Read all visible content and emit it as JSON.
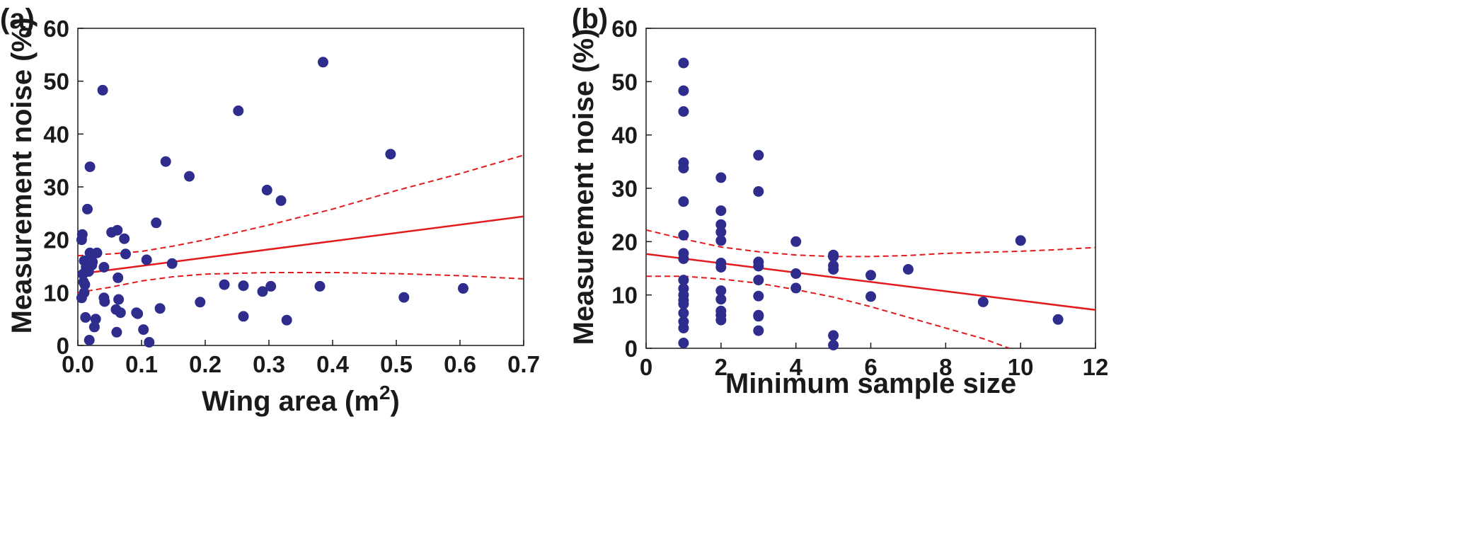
{
  "colors": {
    "points": "#2e2c8c",
    "fit": "#e31a1c",
    "axis": "#1a1a1a"
  },
  "chart_data": [
    {
      "type": "scatter",
      "panel_label": "(a)",
      "xlabel": "Wing area (m",
      "xlabel_sup": "2",
      "xlabel_close": ")",
      "ylabel": "Measurement noise (%)",
      "xlim": [
        0,
        0.7
      ],
      "ylim": [
        0,
        60
      ],
      "xticks": [
        "0.0",
        "0.1",
        "0.2",
        "0.3",
        "0.4",
        "0.5",
        "0.6",
        "0.7"
      ],
      "xtick_values": [
        0,
        0.1,
        0.2,
        0.3,
        0.4,
        0.5,
        0.6,
        0.7
      ],
      "yticks": [
        "0",
        "10",
        "20",
        "30",
        "40",
        "50",
        "60"
      ],
      "ytick_values": [
        0,
        10,
        20,
        30,
        40,
        50,
        60
      ],
      "grid": false,
      "points": [
        [
          0.006,
          9.0
        ],
        [
          0.006,
          20.0
        ],
        [
          0.007,
          21.0
        ],
        [
          0.008,
          13.5
        ],
        [
          0.009,
          12.0
        ],
        [
          0.01,
          16.0
        ],
        [
          0.01,
          10.0
        ],
        [
          0.011,
          11.5
        ],
        [
          0.012,
          5.3
        ],
        [
          0.013,
          14.8
        ],
        [
          0.015,
          25.8
        ],
        [
          0.017,
          14.0
        ],
        [
          0.018,
          1.0
        ],
        [
          0.019,
          33.8
        ],
        [
          0.019,
          17.5
        ],
        [
          0.02,
          15.8
        ],
        [
          0.022,
          15.2
        ],
        [
          0.023,
          15.8
        ],
        [
          0.026,
          3.5
        ],
        [
          0.028,
          5.0
        ],
        [
          0.03,
          17.5
        ],
        [
          0.039,
          48.3
        ],
        [
          0.041,
          9.0
        ],
        [
          0.041,
          14.8
        ],
        [
          0.042,
          8.3
        ],
        [
          0.053,
          21.4
        ],
        [
          0.06,
          6.8
        ],
        [
          0.061,
          2.5
        ],
        [
          0.062,
          21.8
        ],
        [
          0.063,
          12.8
        ],
        [
          0.064,
          8.7
        ],
        [
          0.067,
          6.2
        ],
        [
          0.073,
          20.2
        ],
        [
          0.075,
          17.3
        ],
        [
          0.092,
          6.2
        ],
        [
          0.094,
          6.0
        ],
        [
          0.103,
          3.0
        ],
        [
          0.108,
          16.2
        ],
        [
          0.112,
          0.6
        ],
        [
          0.123,
          23.2
        ],
        [
          0.129,
          7.0
        ],
        [
          0.138,
          34.8
        ],
        [
          0.148,
          15.5
        ],
        [
          0.175,
          32.0
        ],
        [
          0.192,
          8.2
        ],
        [
          0.23,
          11.5
        ],
        [
          0.252,
          44.4
        ],
        [
          0.26,
          5.5
        ],
        [
          0.26,
          11.3
        ],
        [
          0.29,
          10.2
        ],
        [
          0.297,
          29.4
        ],
        [
          0.303,
          11.2
        ],
        [
          0.319,
          27.4
        ],
        [
          0.328,
          4.8
        ],
        [
          0.38,
          11.2
        ],
        [
          0.385,
          53.6
        ],
        [
          0.491,
          36.2
        ],
        [
          0.512,
          9.1
        ],
        [
          0.605,
          10.8
        ]
      ],
      "fit_line": {
        "x": [
          0,
          0.7
        ],
        "y": [
          13.5,
          24.4
        ]
      },
      "ci_upper": {
        "x": [
          0,
          0.05,
          0.1,
          0.15,
          0.2,
          0.3,
          0.4,
          0.5,
          0.6,
          0.7
        ],
        "y": [
          17.0,
          17.3,
          17.8,
          18.8,
          20.0,
          22.8,
          25.8,
          29.3,
          32.5,
          36.0
        ]
      },
      "ci_lower": {
        "x": [
          0,
          0.05,
          0.1,
          0.15,
          0.2,
          0.3,
          0.4,
          0.5,
          0.6,
          0.7
        ],
        "y": [
          10.0,
          11.0,
          12.2,
          13.0,
          13.5,
          13.8,
          13.8,
          13.6,
          13.2,
          12.6
        ]
      }
    },
    {
      "type": "scatter",
      "panel_label": "(b)",
      "xlabel": "Minimum sample size",
      "ylabel": "Measurement noise (%)",
      "xlim": [
        0,
        12
      ],
      "ylim": [
        0,
        60
      ],
      "xticks": [
        "0",
        "2",
        "4",
        "6",
        "8",
        "10",
        "12"
      ],
      "xtick_values": [
        0,
        2,
        4,
        6,
        8,
        10,
        12
      ],
      "yticks": [
        "0",
        "10",
        "20",
        "30",
        "40",
        "50",
        "60"
      ],
      "ytick_values": [
        0,
        10,
        20,
        30,
        40,
        50,
        60
      ],
      "grid": false,
      "points": [
        [
          1,
          53.5
        ],
        [
          1,
          48.3
        ],
        [
          1,
          44.4
        ],
        [
          1,
          34.8
        ],
        [
          1,
          33.8
        ],
        [
          1,
          27.5
        ],
        [
          1,
          21.2
        ],
        [
          1,
          17.8
        ],
        [
          1,
          16.8
        ],
        [
          1,
          12.8
        ],
        [
          1,
          11.2
        ],
        [
          1,
          10.0
        ],
        [
          1,
          9.0
        ],
        [
          1,
          8.3
        ],
        [
          1,
          6.6
        ],
        [
          1,
          5.0
        ],
        [
          1,
          3.8
        ],
        [
          1,
          1.0
        ],
        [
          2,
          32.0
        ],
        [
          2,
          25.8
        ],
        [
          2,
          23.2
        ],
        [
          2,
          21.8
        ],
        [
          2,
          20.2
        ],
        [
          2,
          16.0
        ],
        [
          2,
          15.2
        ],
        [
          2,
          10.8
        ],
        [
          2,
          9.2
        ],
        [
          2,
          7.0
        ],
        [
          2,
          6.2
        ],
        [
          2,
          5.3
        ],
        [
          3,
          36.2
        ],
        [
          3,
          29.4
        ],
        [
          3,
          16.2
        ],
        [
          3,
          15.4
        ],
        [
          3,
          12.8
        ],
        [
          3,
          9.8
        ],
        [
          3,
          6.2
        ],
        [
          3,
          6.0
        ],
        [
          3,
          3.3
        ],
        [
          4,
          20.0
        ],
        [
          4,
          14.0
        ],
        [
          4,
          11.3
        ],
        [
          5,
          17.5
        ],
        [
          5,
          17.2
        ],
        [
          5,
          15.5
        ],
        [
          5,
          14.8
        ],
        [
          5,
          2.4
        ],
        [
          5,
          0.6
        ],
        [
          6,
          13.7
        ],
        [
          6,
          9.7
        ],
        [
          7,
          14.8
        ],
        [
          9,
          8.7
        ],
        [
          10,
          20.2
        ],
        [
          11,
          5.4
        ]
      ],
      "fit_line": {
        "x": [
          0,
          12
        ],
        "y": [
          17.7,
          7.2
        ]
      },
      "ci_upper": {
        "x": [
          0,
          1,
          2,
          3,
          4,
          5,
          6,
          7,
          8,
          9,
          10,
          11,
          12
        ],
        "y": [
          22.2,
          20.5,
          19.0,
          18.1,
          17.5,
          17.2,
          17.2,
          17.4,
          17.8,
          18.0,
          18.2,
          18.5,
          18.9
        ]
      },
      "ci_lower": {
        "x": [
          0,
          1,
          2,
          3,
          4,
          5,
          6,
          7,
          8,
          9,
          9.7
        ],
        "y": [
          13.5,
          13.5,
          13.0,
          12.2,
          11.0,
          9.6,
          7.8,
          5.8,
          3.8,
          1.8,
          0
        ]
      }
    }
  ]
}
